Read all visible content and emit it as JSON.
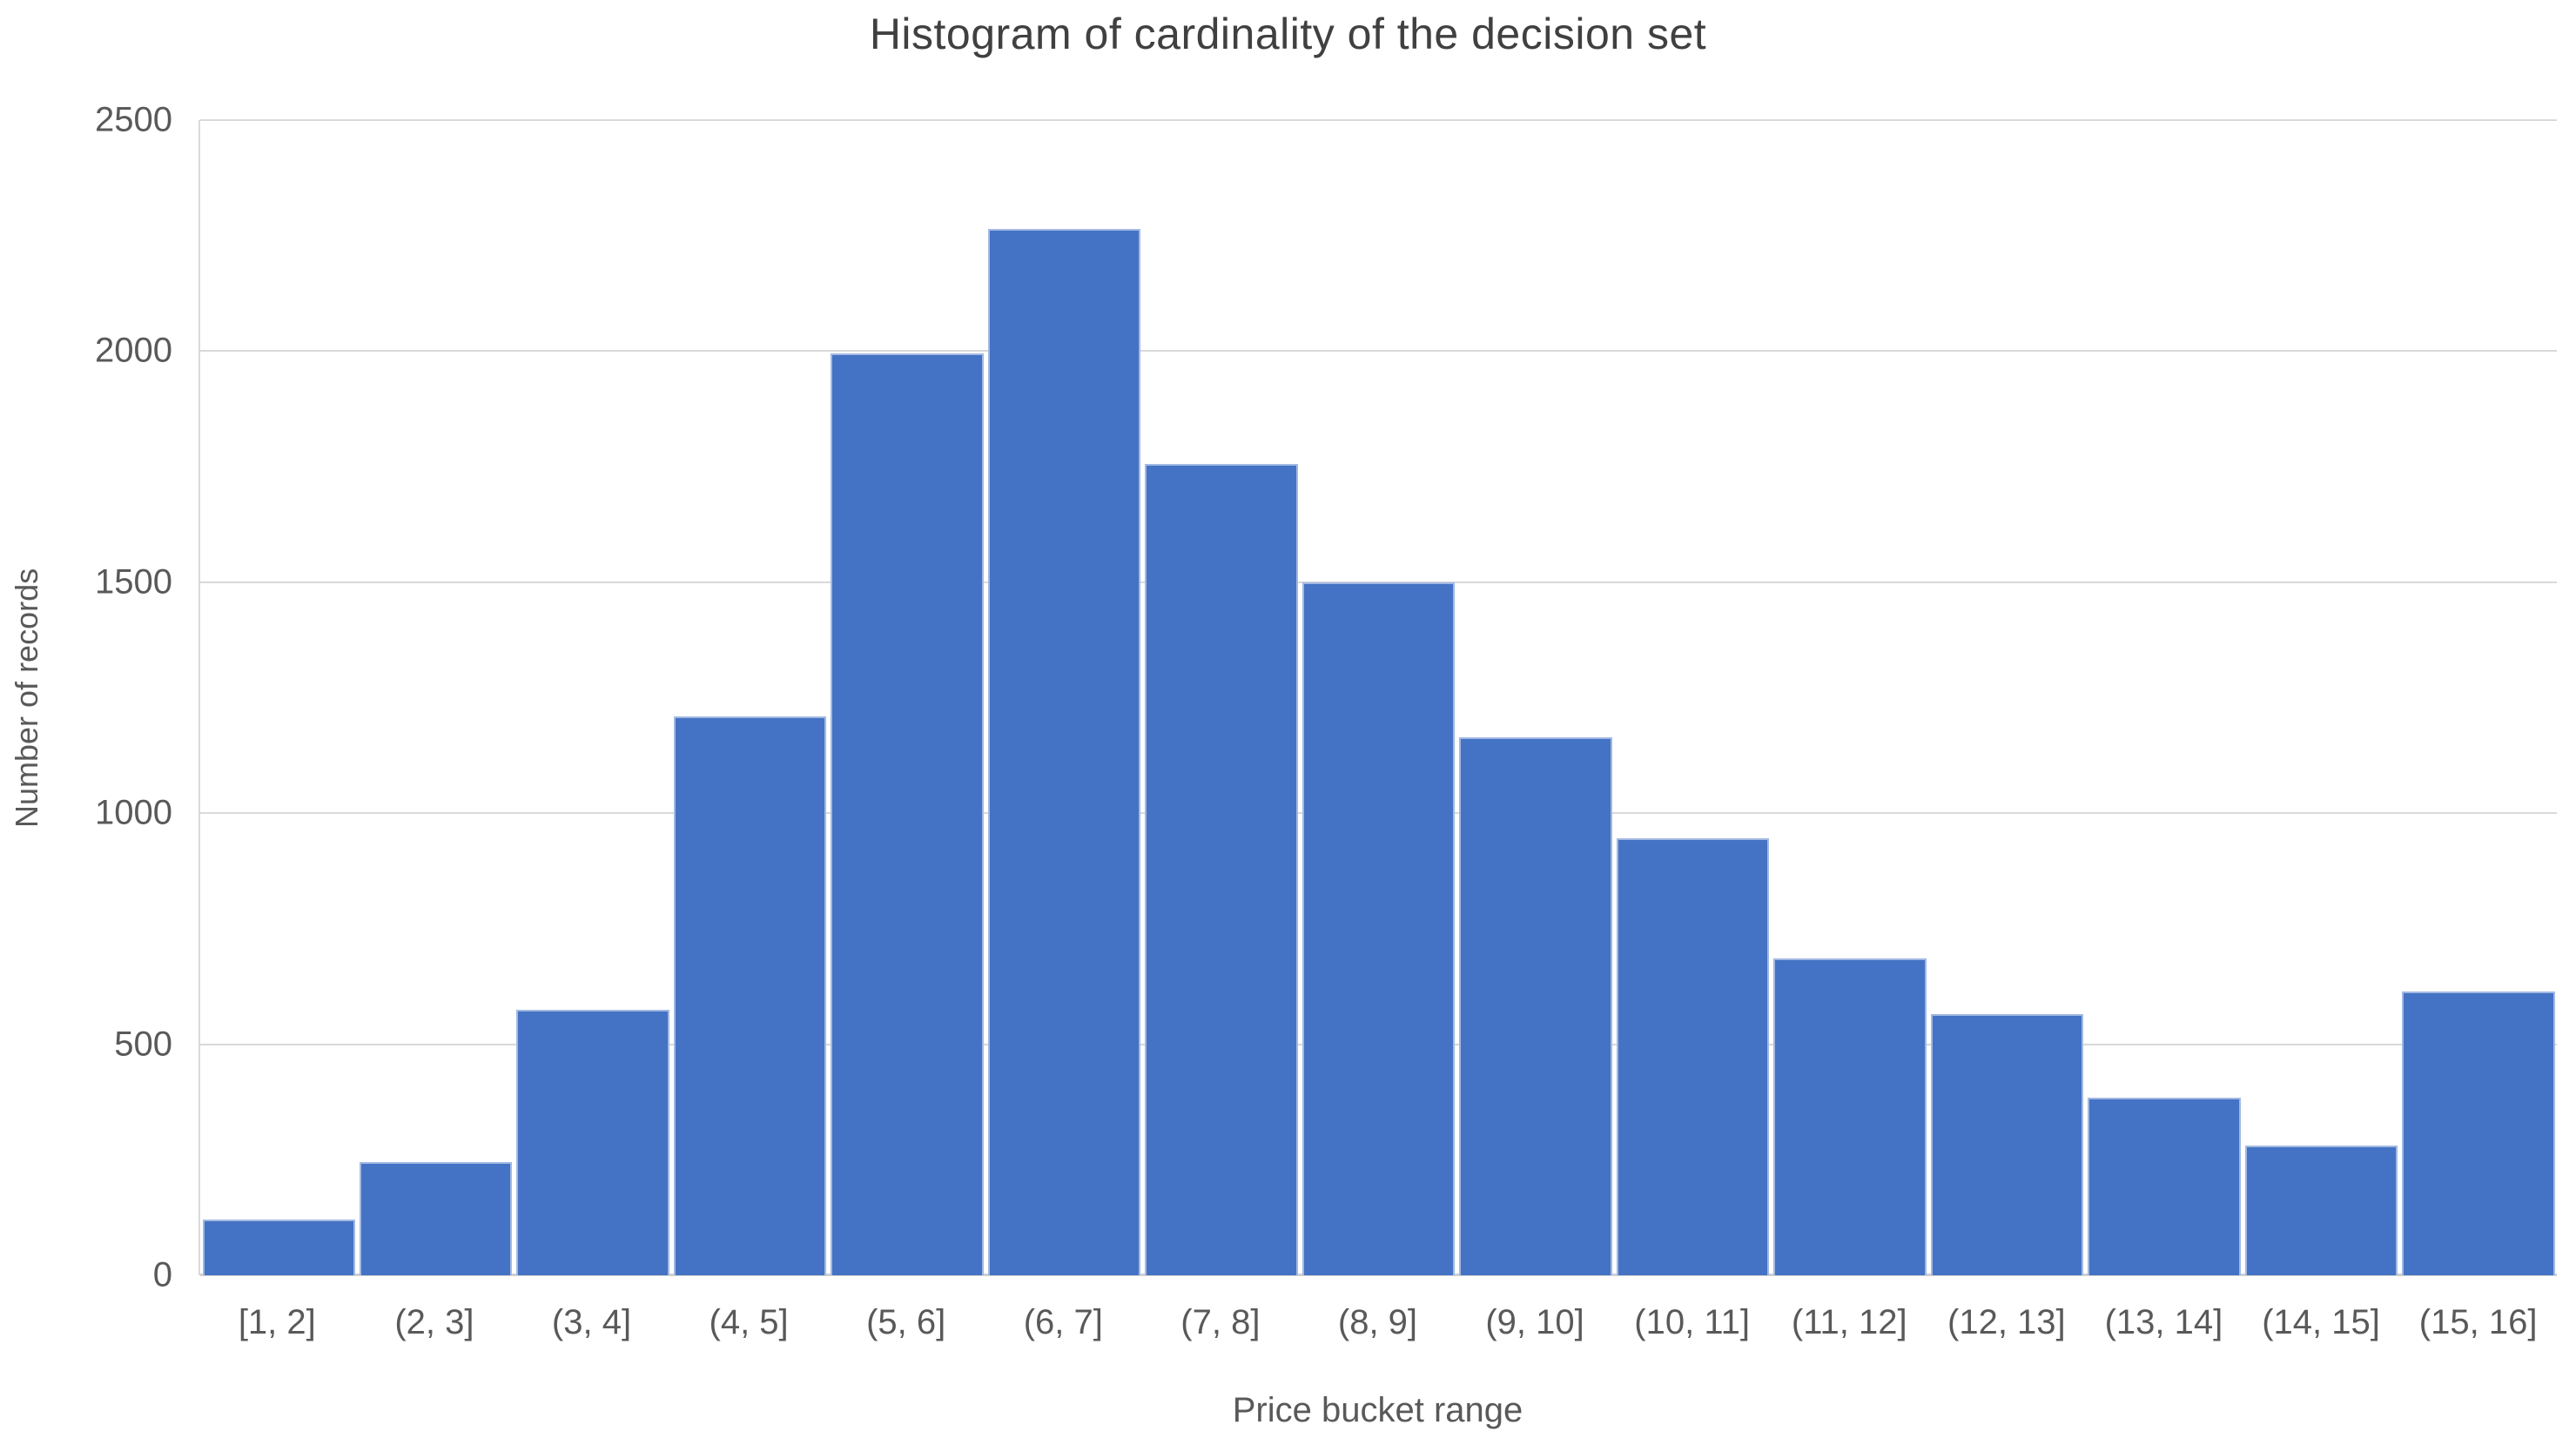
{
  "chart_data": {
    "type": "bar",
    "title": "Histogram of cardinality of the decision set",
    "xlabel": "Price bucket range",
    "ylabel": "Number of records",
    "categories": [
      "[1, 2]",
      "(2, 3]",
      "(3, 4]",
      "(4, 5]",
      "(5, 6]",
      "(6, 7]",
      "(7, 8]",
      "(8, 9]",
      "(9, 10]",
      "(10, 11]",
      "(11, 12]",
      "(12, 13]",
      "(13, 14]",
      "(14, 15]",
      "(15, 16]"
    ],
    "values": [
      120,
      245,
      575,
      1210,
      1995,
      2265,
      1755,
      1500,
      1165,
      945,
      685,
      565,
      385,
      280,
      615
    ],
    "ylim": [
      0,
      2500
    ],
    "yticks": [
      0,
      500,
      1000,
      1500,
      2000,
      2500
    ],
    "grid": true,
    "legend_position": "none",
    "colors": {
      "bar": "#4472c4",
      "gridline": "#d9d9d9",
      "axis_baseline": "#cfcfcf",
      "tick_text": "#595959",
      "title_text": "#404040",
      "background": "#ffffff"
    }
  }
}
